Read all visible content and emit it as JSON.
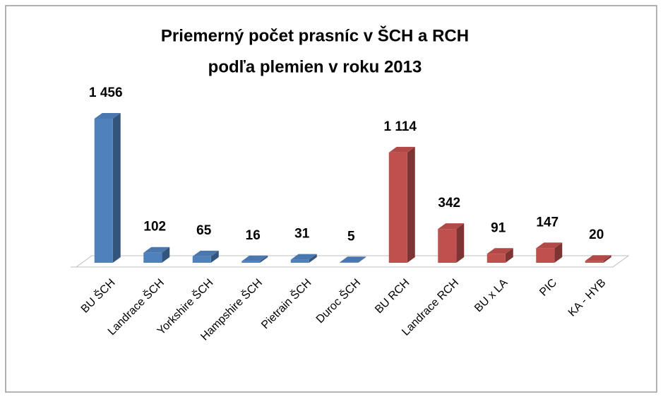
{
  "chart_data": {
    "type": "bar3d",
    "title": [
      "Priemerný počet prasníc v ŠCH a RCH",
      "podľa plemien v roku 2013"
    ],
    "categories": [
      "BU ŠCH",
      "Landrace ŠCH",
      "Yorkshire ŠCH",
      "Hampshire ŠCH",
      "Pietrain ŠCH",
      "Duroc ŠCH",
      "BU RCH",
      "Landrace RCH",
      "BU x LA",
      "PIC",
      "KA - HYB"
    ],
    "values": [
      1456,
      102,
      65,
      16,
      31,
      5,
      1114,
      342,
      91,
      147,
      20
    ],
    "value_labels": [
      "1 456",
      "102",
      "65",
      "16",
      "31",
      "5",
      "1 114",
      "342",
      "91",
      "147",
      "20"
    ],
    "colors": [
      "#4f81bd",
      "#4f81bd",
      "#4f81bd",
      "#4f81bd",
      "#4f81bd",
      "#4f81bd",
      "#c0504d",
      "#c0504d",
      "#c0504d",
      "#c0504d",
      "#c0504d"
    ]
  }
}
